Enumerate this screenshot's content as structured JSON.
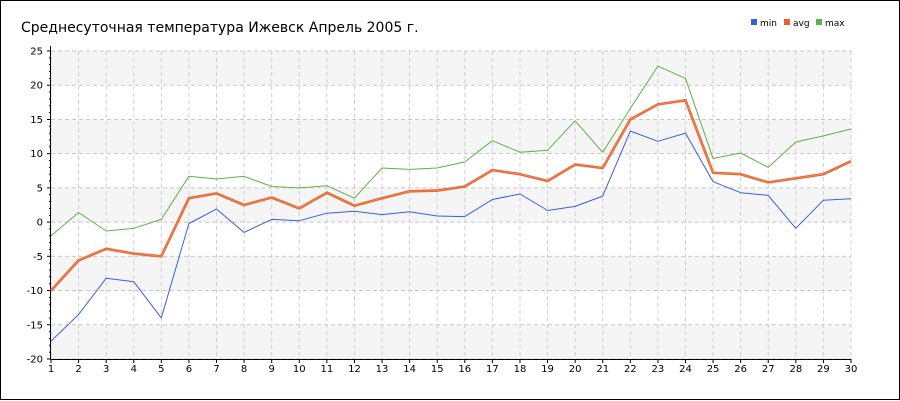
{
  "chart_data": {
    "type": "line",
    "title": "Среднесуточная температура Ижевск  Апрель 2005 г.",
    "xlabel": "",
    "ylabel": "",
    "categories": [
      1,
      2,
      3,
      4,
      5,
      6,
      7,
      8,
      9,
      10,
      11,
      12,
      13,
      14,
      15,
      16,
      17,
      18,
      19,
      20,
      21,
      22,
      23,
      24,
      25,
      26,
      27,
      28,
      29,
      30
    ],
    "ylim": [
      -20,
      25
    ],
    "yticks": [
      -20,
      -15,
      -10,
      -5,
      0,
      5,
      10,
      15,
      20,
      25
    ],
    "grid": true,
    "legend_position": "top-right",
    "series": [
      {
        "name": "min",
        "color": "#3a5fdc",
        "values": [
          -17.4,
          -13.5,
          -8.2,
          -8.7,
          -14.0,
          -0.2,
          1.9,
          -1.5,
          0.4,
          0.2,
          1.3,
          1.6,
          1.1,
          1.5,
          0.9,
          0.8,
          3.3,
          4.1,
          1.7,
          2.3,
          3.8,
          13.3,
          11.8,
          13.0,
          5.9,
          4.3,
          3.9,
          -0.9,
          3.2,
          3.4
        ]
      },
      {
        "name": "avg",
        "color": "#e8602c",
        "values": [
          -10.0,
          -5.6,
          -3.9,
          -4.6,
          -5.0,
          3.5,
          4.2,
          2.5,
          3.6,
          2.0,
          4.3,
          2.4,
          3.5,
          4.5,
          4.6,
          5.2,
          7.6,
          7.0,
          6.0,
          8.4,
          7.9,
          15.0,
          17.2,
          17.8,
          7.2,
          7.0,
          5.8,
          6.4,
          7.0,
          8.9
        ]
      },
      {
        "name": "max",
        "color": "#5fb14a",
        "values": [
          -2.0,
          1.4,
          -1.3,
          -0.9,
          0.4,
          6.7,
          6.3,
          6.7,
          5.2,
          5.0,
          5.3,
          3.5,
          7.9,
          7.7,
          7.9,
          8.8,
          11.9,
          10.2,
          10.5,
          14.8,
          10.2,
          16.6,
          22.8,
          21.0,
          9.3,
          10.1,
          8.0,
          11.7,
          12.6,
          13.6
        ]
      }
    ]
  }
}
